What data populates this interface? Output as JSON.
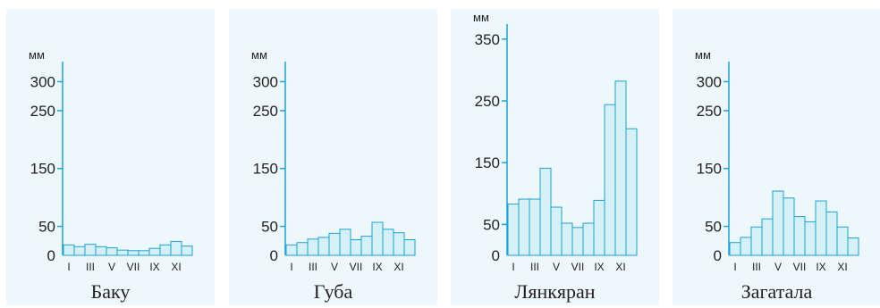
{
  "chart_data": [
    {
      "type": "bar",
      "title": "Баку",
      "ylabel": "мм",
      "yticks": [
        0,
        50,
        150,
        250,
        300
      ],
      "ylim": [
        0,
        330
      ],
      "xticklabels": [
        "I",
        "III",
        "V",
        "VII",
        "IX",
        "XI"
      ],
      "months": [
        "I",
        "II",
        "III",
        "IV",
        "V",
        "VI",
        "VII",
        "VIII",
        "IX",
        "X",
        "XI",
        "XII"
      ],
      "values": [
        18,
        15,
        19,
        15,
        13,
        9,
        8,
        8,
        12,
        18,
        24,
        16
      ]
    },
    {
      "type": "bar",
      "title": "Губа",
      "ylabel": "мм",
      "yticks": [
        0,
        50,
        150,
        250,
        300
      ],
      "ylim": [
        0,
        330
      ],
      "xticklabels": [
        "I",
        "III",
        "V",
        "VII",
        "IX",
        "XI"
      ],
      "months": [
        "I",
        "II",
        "III",
        "IV",
        "V",
        "VI",
        "VII",
        "VIII",
        "IX",
        "X",
        "XI",
        "XII"
      ],
      "values": [
        18,
        22,
        28,
        31,
        38,
        45,
        27,
        33,
        57,
        45,
        39,
        27
      ]
    },
    {
      "type": "bar",
      "title": "Лянкяран",
      "ylabel": "мм",
      "yticks": [
        0,
        50,
        150,
        250,
        350
      ],
      "ylim": [
        0,
        370
      ],
      "xticklabels": [
        "I",
        "III",
        "V",
        "VII",
        "IX",
        "XI"
      ],
      "months": [
        "I",
        "II",
        "III",
        "IV",
        "V",
        "VI",
        "VII",
        "VIII",
        "IX",
        "X",
        "XI",
        "XII"
      ],
      "values": [
        83,
        91,
        91,
        141,
        78,
        52,
        45,
        52,
        89,
        244,
        282,
        205
      ]
    },
    {
      "type": "bar",
      "title": "Загатала",
      "ylabel": "мм",
      "yticks": [
        0,
        50,
        150,
        250,
        300
      ],
      "ylim": [
        0,
        330
      ],
      "xticklabels": [
        "I",
        "III",
        "V",
        "VII",
        "IX",
        "XI"
      ],
      "months": [
        "I",
        "II",
        "III",
        "IV",
        "V",
        "VI",
        "VII",
        "VIII",
        "IX",
        "X",
        "XI",
        "XII"
      ],
      "values": [
        22,
        31,
        49,
        63,
        111,
        99,
        67,
        58,
        94,
        75,
        49,
        30
      ]
    }
  ],
  "colors": {
    "panel_bg": "#eef7fb",
    "bar_fill": "#d6f0f8",
    "bar_stroke": "#1aa3d6",
    "axis": "#1aa3d6"
  }
}
